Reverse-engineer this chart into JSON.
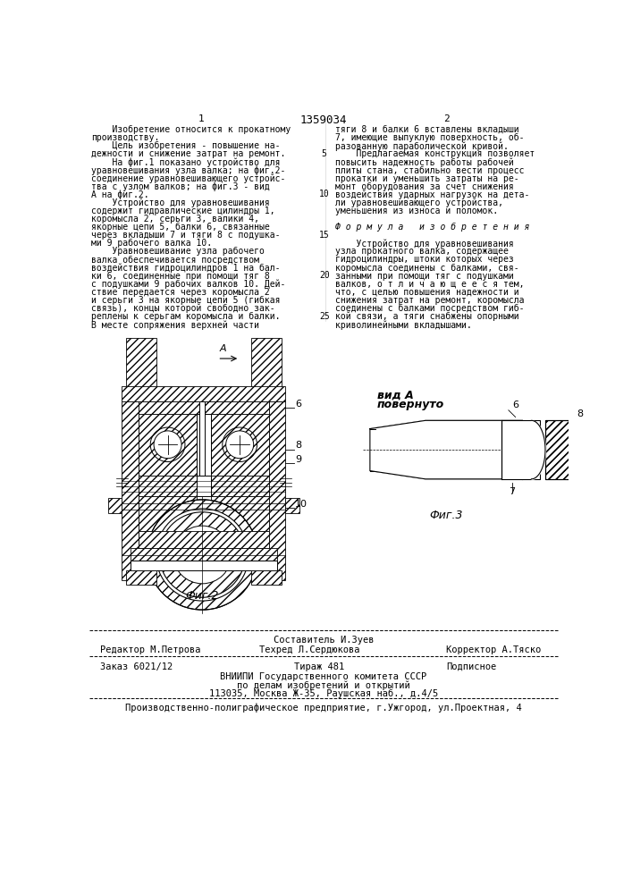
{
  "page_number_left": "1",
  "patent_number": "1359034",
  "page_number_right": "2",
  "bg_color": "#ffffff",
  "text_color": "#000000",
  "col1_lines": [
    "    Изобретение относится к прокатному",
    "производству.",
    "    Цель изобретения - повышение на-",
    "дежности и снижение затрат на ремонт.",
    "    На фиг.1 показано устройство для",
    "уравновешивания узла валка; на фиг.2-",
    "соединение уравновешивающего устройс-",
    "тва с узлом валков; на фиг.3 - вид",
    "А на фиг.2.",
    "    Устройство для уравновешивания",
    "содержит гидравлические цилиндры 1,",
    "коромысла 2, серьги 3, валики 4,",
    "якорные цепи 5, балки 6, связанные",
    "через вкладыши 7 и тяги 8 с подушка-",
    "ми 9 рабочего валка 10.",
    "    Уравновешивание узла рабочего",
    "валка обеспечивается посредством",
    "воздействия гидроцилиндров 1 на бал-",
    "ки 6, соединенные при помощи тяг 8",
    "с подушками 9 рабочих валков 10. Дей-",
    "ствие передается через коромысла 2",
    "и серьги 3 на якорные цепи 5 (гибкая",
    "связь), концы которой свободно зак-",
    "реплены к серьгам коромысла и балки.",
    "В месте сопряжения верхней части"
  ],
  "col2_lines": [
    "тяги 8 и балки 6 вставлены вкладыши",
    "7, имеющие выпуклую поверхность, об-",
    "разованную параболической кривой.",
    "    Предлагаемая конструкция позволяет",
    "повысить надежность работы рабочей",
    "плиты стана, стабильно вести процесс",
    "прокатки и уменьшить затраты на ре-",
    "монт оборудования за счет снижения",
    "воздействия ударных нагрузок на дета-",
    "ли уравновешивающего устройства,",
    "уменьшения из износа и поломок.",
    "",
    "Ф о р м у л а   и з о б р е т е н и я",
    "",
    "    Устройство для уравновешивания",
    "узла прокатного валка, содержащее",
    "гидроцилиндры, штоки которых через",
    "коромысла соединены с балками, свя-",
    "занными при помощи тяг с подушками",
    "валков, о т л и ч а ю щ е е с я тем,",
    "что, с целью повышения надежности и",
    "снижения затрат на ремонт, коромысла",
    "соединены с балками посредством гиб-",
    "кой связи, а тяги снабжены опорными",
    "криволинейными вкладышами."
  ],
  "line_num_rows": [
    3,
    8,
    13,
    18,
    23
  ],
  "line_num_vals": [
    "5",
    "10",
    "15",
    "20",
    "25"
  ],
  "footer_author": "Составитель И.Зуев",
  "footer_editor": "Редактор М.Петрова",
  "footer_tech": "Техред Л.Сердюкова",
  "footer_corrector": "Корректор А.Тяско",
  "footer_order": "Заказ 6021/12",
  "footer_circ": "Тираж 481",
  "footer_sub": "Подписное",
  "footer_org1": "ВНИИПИ Государственного комитета СССР",
  "footer_org2": "по делам изобретений и открытий",
  "footer_addr": "113035, Москва Ж-35, Раушская наб., д.4/5",
  "footer_prod": "Производственно-полиграфическое предприятие, г.Ужгород, ул.Проектная, 4"
}
